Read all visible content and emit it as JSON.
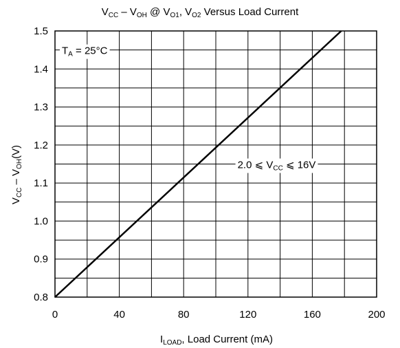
{
  "chart_data": {
    "type": "line",
    "title": {
      "parts": [
        [
          "V",
          ""
        ],
        [
          "CC",
          "sub"
        ],
        [
          " – V",
          ""
        ],
        [
          "OH",
          "sub"
        ],
        [
          " @ V",
          ""
        ],
        [
          "O1",
          "sub"
        ],
        [
          ", V",
          ""
        ],
        [
          "O2",
          "sub"
        ],
        [
          " Versus Load Current",
          ""
        ]
      ]
    },
    "xlabel": {
      "parts": [
        [
          "I",
          ""
        ],
        [
          "LOAD",
          "sub"
        ],
        [
          ", Load Current (mA)",
          ""
        ]
      ]
    },
    "ylabel": {
      "parts": [
        [
          "V",
          ""
        ],
        [
          "CC",
          "sub"
        ],
        [
          " – V",
          ""
        ],
        [
          "OH",
          "sub"
        ],
        [
          "(V)",
          ""
        ]
      ]
    },
    "xlim": [
      0,
      200
    ],
    "ylim": [
      0.8,
      1.5
    ],
    "x_major_ticks": [
      0,
      40,
      80,
      120,
      160,
      200
    ],
    "x_minor_gridlines": [
      20,
      60,
      100,
      140,
      180
    ],
    "y_major_ticks": [
      0.8,
      0.9,
      1.0,
      1.1,
      1.2,
      1.3,
      1.4,
      1.5
    ],
    "y_minor_gridlines": [
      0.85,
      0.95,
      1.05,
      1.15,
      1.25,
      1.35,
      1.45
    ],
    "x_tick_labels": [
      "0",
      "40",
      "80",
      "120",
      "160",
      "200"
    ],
    "y_tick_labels": [
      "0.8",
      "0.9",
      "1.0",
      "1.1",
      "1.2",
      "1.3",
      "1.4",
      "1.5"
    ],
    "grid": true,
    "series": [
      {
        "points": [
          {
            "x": 0,
            "y": 0.8
          },
          {
            "x": 178,
            "y": 1.5
          }
        ]
      }
    ],
    "annotations": [
      {
        "parts": [
          [
            "T",
            ""
          ],
          [
            "A",
            "sub"
          ],
          [
            " = 25°C",
            ""
          ]
        ],
        "x": 0,
        "y": 1.45,
        "anchor": "start"
      },
      {
        "parts": [
          [
            "2.0 ⩽ V",
            ""
          ],
          [
            "CC",
            "sub"
          ],
          [
            " ⩽ 16V",
            ""
          ]
        ],
        "x": 160,
        "y": 1.15,
        "anchor": "end"
      }
    ]
  }
}
